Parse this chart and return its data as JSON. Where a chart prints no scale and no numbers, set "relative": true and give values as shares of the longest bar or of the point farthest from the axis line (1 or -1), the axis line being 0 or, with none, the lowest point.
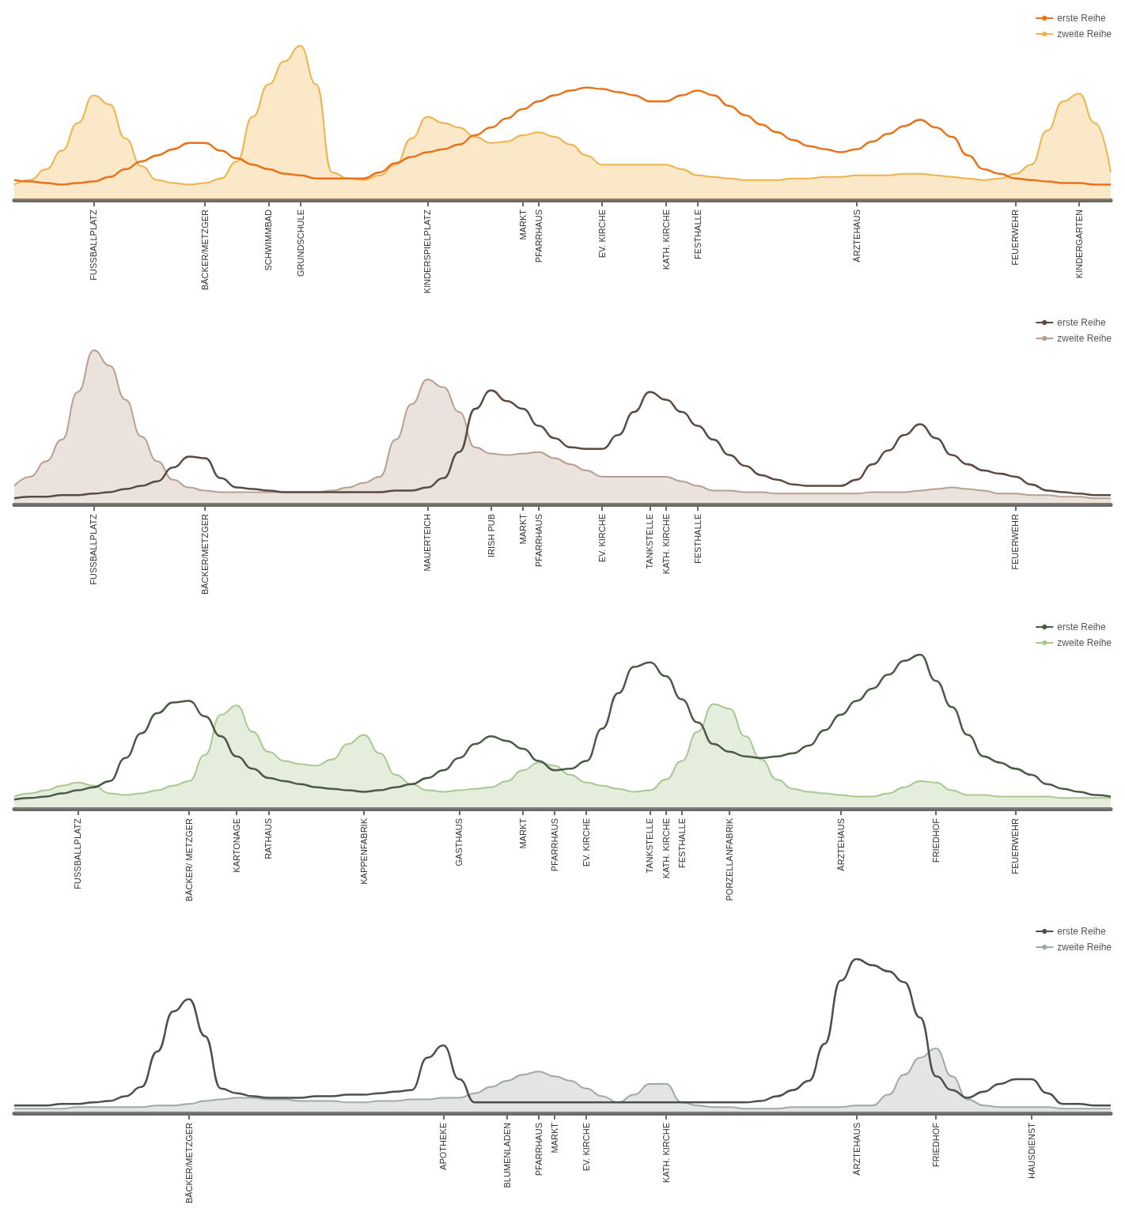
{
  "chart_data": [
    {
      "type": "line",
      "relative": true,
      "legend": "top right",
      "categories": [
        null,
        null,
        null,
        null,
        null,
        "FUSSBALLPLATZ",
        null,
        null,
        null,
        null,
        null,
        null,
        "BÄCKER/METZGER",
        null,
        null,
        null,
        "SCHWIMMBAD",
        null,
        "GRUNDSCHULE",
        null,
        null,
        null,
        null,
        null,
        null,
        null,
        "KINDERSPIELPLATZ",
        null,
        null,
        null,
        null,
        null,
        "MARKT",
        "PFARRHAUS",
        null,
        null,
        null,
        "EV. KIRCHE",
        null,
        null,
        null,
        "KATH. KIRCHE",
        null,
        "FESTHALLE",
        null,
        null,
        null,
        null,
        null,
        null,
        null,
        null,
        null,
        "ÄRZTEHAUS",
        null,
        null,
        null,
        null,
        null,
        null,
        null,
        null,
        null,
        "FEUERWEHR",
        null,
        null,
        null,
        "KINDERGARTEN",
        null,
        null
      ],
      "series": [
        {
          "name": "erste Reihe",
          "type": "line",
          "color": "#e8731a",
          "values": [
            0.13,
            0.12,
            0.11,
            0.1,
            0.11,
            0.12,
            0.15,
            0.2,
            0.25,
            0.29,
            0.33,
            0.37,
            0.37,
            0.32,
            0.27,
            0.23,
            0.2,
            0.17,
            0.16,
            0.14,
            0.14,
            0.14,
            0.14,
            0.18,
            0.24,
            0.28,
            0.31,
            0.33,
            0.36,
            0.42,
            0.47,
            0.53,
            0.59,
            0.64,
            0.68,
            0.71,
            0.73,
            0.72,
            0.7,
            0.68,
            0.64,
            0.64,
            0.68,
            0.71,
            0.68,
            0.61,
            0.55,
            0.49,
            0.44,
            0.39,
            0.35,
            0.33,
            0.31,
            0.33,
            0.38,
            0.43,
            0.48,
            0.52,
            0.47,
            0.41,
            0.29,
            0.2,
            0.17,
            0.14,
            0.13,
            0.12,
            0.11,
            0.11,
            0.1,
            0.1
          ]
        },
        {
          "name": "zweite Reihe",
          "type": "area",
          "color": "#f0b24a",
          "values": [
            0.1,
            0.13,
            0.2,
            0.32,
            0.5,
            0.68,
            0.62,
            0.4,
            0.22,
            0.13,
            0.11,
            0.1,
            0.11,
            0.14,
            0.25,
            0.54,
            0.75,
            0.9,
            1.0,
            0.75,
            0.18,
            0.14,
            0.13,
            0.16,
            0.23,
            0.4,
            0.54,
            0.5,
            0.47,
            0.41,
            0.37,
            0.38,
            0.42,
            0.44,
            0.41,
            0.36,
            0.29,
            0.23,
            0.23,
            0.23,
            0.23,
            0.23,
            0.2,
            0.16,
            0.15,
            0.14,
            0.13,
            0.13,
            0.13,
            0.14,
            0.14,
            0.15,
            0.15,
            0.16,
            0.16,
            0.16,
            0.17,
            0.17,
            0.16,
            0.15,
            0.14,
            0.13,
            0.14,
            0.17,
            0.23,
            0.45,
            0.64,
            0.69,
            0.5,
            0.18
          ]
        }
      ]
    },
    {
      "type": "line",
      "relative": true,
      "legend": "top right",
      "categories": [
        null,
        null,
        null,
        null,
        null,
        "FUSSBALLPLATZ",
        null,
        null,
        null,
        null,
        null,
        null,
        "BÄCKER/METZGER",
        null,
        null,
        null,
        null,
        null,
        null,
        null,
        null,
        null,
        null,
        null,
        null,
        null,
        "MAUERTEICH",
        null,
        null,
        null,
        "IRISH PUB",
        null,
        "MARKT",
        "PFARRHAUS",
        null,
        null,
        null,
        "EV. KIRCHE",
        null,
        null,
        "TANKSTELLE",
        "KATH. KIRCHE",
        null,
        "FESTHALLE",
        null,
        null,
        null,
        null,
        null,
        null,
        null,
        null,
        null,
        null,
        null,
        null,
        null,
        null,
        null,
        null,
        null,
        null,
        null,
        "FEUERWEHR",
        null,
        null,
        null,
        null,
        null,
        null
      ],
      "series": [
        {
          "name": "erste Reihe",
          "type": "line",
          "color": "#5a4a42",
          "values": [
            0.04,
            0.05,
            0.05,
            0.06,
            0.06,
            0.07,
            0.08,
            0.1,
            0.12,
            0.15,
            0.24,
            0.31,
            0.3,
            0.17,
            0.11,
            0.1,
            0.09,
            0.08,
            0.08,
            0.08,
            0.08,
            0.08,
            0.08,
            0.08,
            0.09,
            0.09,
            0.11,
            0.17,
            0.34,
            0.62,
            0.74,
            0.67,
            0.62,
            0.51,
            0.43,
            0.37,
            0.36,
            0.36,
            0.45,
            0.6,
            0.73,
            0.68,
            0.6,
            0.51,
            0.42,
            0.32,
            0.25,
            0.19,
            0.16,
            0.13,
            0.12,
            0.12,
            0.12,
            0.16,
            0.26,
            0.35,
            0.45,
            0.52,
            0.43,
            0.32,
            0.26,
            0.22,
            0.2,
            0.18,
            0.13,
            0.09,
            0.08,
            0.07,
            0.06,
            0.06
          ]
        },
        {
          "name": "zweite Reihe",
          "type": "area",
          "color": "#b8a090",
          "values": [
            0.12,
            0.18,
            0.28,
            0.42,
            0.73,
            1.0,
            0.9,
            0.68,
            0.44,
            0.28,
            0.16,
            0.11,
            0.09,
            0.08,
            0.08,
            0.08,
            0.08,
            0.08,
            0.08,
            0.08,
            0.09,
            0.11,
            0.14,
            0.18,
            0.42,
            0.65,
            0.81,
            0.76,
            0.6,
            0.37,
            0.33,
            0.32,
            0.33,
            0.34,
            0.3,
            0.26,
            0.22,
            0.18,
            0.18,
            0.18,
            0.18,
            0.18,
            0.15,
            0.12,
            0.09,
            0.09,
            0.08,
            0.08,
            0.07,
            0.07,
            0.07,
            0.07,
            0.07,
            0.07,
            0.08,
            0.08,
            0.08,
            0.09,
            0.1,
            0.11,
            0.1,
            0.09,
            0.07,
            0.07,
            0.06,
            0.06,
            0.05,
            0.05,
            0.04,
            0.04
          ]
        }
      ]
    },
    {
      "type": "line",
      "relative": true,
      "legend": "top right",
      "categories": [
        null,
        null,
        null,
        null,
        "FUSSBALLPLATZ",
        null,
        null,
        null,
        null,
        null,
        null,
        "BÄCKER/ METZGER",
        null,
        null,
        "KARTONAGE",
        null,
        "RATHAUS",
        null,
        null,
        null,
        null,
        null,
        "KAPPENFABRIK",
        null,
        null,
        null,
        null,
        null,
        "GASTHAUS",
        null,
        null,
        null,
        "MARKT",
        null,
        "PFARRHAUS",
        null,
        "EV. KIRCHE",
        null,
        null,
        null,
        "TANKSTELLE",
        "KATH. KIRCHE",
        "FESTHALLE",
        null,
        null,
        "PORZELLANFABRIK",
        null,
        null,
        null,
        null,
        null,
        null,
        "ÄRZTEHAUS",
        null,
        null,
        null,
        null,
        null,
        "FRIEDHOF",
        null,
        null,
        null,
        null,
        "FEUERWEHR",
        null,
        null,
        null,
        null,
        null,
        null
      ],
      "series": [
        {
          "name": "erste Reihe",
          "type": "line",
          "color": "#4a5a45",
          "values": [
            0.06,
            0.07,
            0.08,
            0.1,
            0.12,
            0.14,
            0.18,
            0.33,
            0.49,
            0.62,
            0.69,
            0.7,
            0.6,
            0.47,
            0.34,
            0.26,
            0.2,
            0.18,
            0.16,
            0.14,
            0.13,
            0.12,
            0.11,
            0.12,
            0.14,
            0.16,
            0.2,
            0.25,
            0.33,
            0.42,
            0.47,
            0.44,
            0.39,
            0.31,
            0.25,
            0.26,
            0.31,
            0.52,
            0.75,
            0.92,
            0.95,
            0.86,
            0.71,
            0.56,
            0.42,
            0.37,
            0.34,
            0.33,
            0.34,
            0.36,
            0.41,
            0.51,
            0.61,
            0.7,
            0.78,
            0.87,
            0.96,
            1.0,
            0.83,
            0.66,
            0.48,
            0.34,
            0.3,
            0.26,
            0.22,
            0.16,
            0.13,
            0.11,
            0.09,
            0.08
          ]
        },
        {
          "name": "zweite Reihe",
          "type": "area",
          "color": "#a8c890",
          "values": [
            0.08,
            0.1,
            0.12,
            0.15,
            0.17,
            0.15,
            0.1,
            0.09,
            0.1,
            0.12,
            0.15,
            0.18,
            0.35,
            0.61,
            0.67,
            0.5,
            0.37,
            0.31,
            0.29,
            0.28,
            0.32,
            0.42,
            0.48,
            0.36,
            0.22,
            0.16,
            0.12,
            0.11,
            0.12,
            0.13,
            0.14,
            0.18,
            0.25,
            0.3,
            0.28,
            0.22,
            0.17,
            0.15,
            0.13,
            0.11,
            0.12,
            0.19,
            0.31,
            0.5,
            0.68,
            0.65,
            0.47,
            0.32,
            0.19,
            0.13,
            0.11,
            0.1,
            0.09,
            0.08,
            0.08,
            0.1,
            0.14,
            0.18,
            0.17,
            0.12,
            0.09,
            0.09,
            0.08,
            0.08,
            0.08,
            0.08,
            0.07,
            0.07,
            0.07,
            0.07
          ]
        }
      ]
    },
    {
      "type": "line",
      "relative": true,
      "legend": "top right",
      "categories": [
        null,
        null,
        null,
        null,
        null,
        null,
        null,
        null,
        null,
        null,
        null,
        "BÄCKER/METZGER",
        null,
        null,
        null,
        null,
        null,
        null,
        null,
        null,
        null,
        null,
        null,
        null,
        null,
        null,
        null,
        "APOTHEKE",
        null,
        null,
        null,
        "BLUMENLADEN",
        null,
        "PFARRHAUS",
        "MARKT",
        null,
        "EV. KIRCHE",
        null,
        null,
        null,
        null,
        "KATH. KIRCHE",
        null,
        null,
        null,
        null,
        null,
        null,
        null,
        null,
        null,
        null,
        null,
        "ÄRZTEHAUS",
        null,
        null,
        null,
        null,
        "FRIEDHOF",
        null,
        null,
        null,
        null,
        null,
        "HAUSDIENST",
        null,
        null,
        null,
        null,
        null
      ],
      "series": [
        {
          "name": "erste Reihe",
          "type": "line",
          "color": "#4a504c",
          "values": [
            0.05,
            0.05,
            0.05,
            0.06,
            0.06,
            0.07,
            0.08,
            0.11,
            0.17,
            0.4,
            0.66,
            0.74,
            0.5,
            0.16,
            0.13,
            0.11,
            0.1,
            0.1,
            0.1,
            0.11,
            0.11,
            0.12,
            0.12,
            0.13,
            0.14,
            0.15,
            0.36,
            0.44,
            0.22,
            0.07,
            0.07,
            0.07,
            0.07,
            0.07,
            0.07,
            0.07,
            0.07,
            0.07,
            0.07,
            0.07,
            0.07,
            0.07,
            0.07,
            0.07,
            0.07,
            0.07,
            0.07,
            0.08,
            0.11,
            0.15,
            0.21,
            0.45,
            0.86,
            1.0,
            0.96,
            0.92,
            0.85,
            0.62,
            0.24,
            0.15,
            0.1,
            0.14,
            0.19,
            0.22,
            0.22,
            0.13,
            0.06,
            0.06,
            0.05,
            0.05
          ]
        },
        {
          "name": "zweite Reihe",
          "type": "area",
          "color": "#a0aaa5",
          "values": [
            0.03,
            0.03,
            0.03,
            0.03,
            0.04,
            0.04,
            0.04,
            0.04,
            0.04,
            0.05,
            0.05,
            0.06,
            0.08,
            0.09,
            0.1,
            0.1,
            0.09,
            0.09,
            0.08,
            0.08,
            0.08,
            0.07,
            0.07,
            0.08,
            0.08,
            0.09,
            0.09,
            0.1,
            0.1,
            0.13,
            0.17,
            0.21,
            0.25,
            0.27,
            0.24,
            0.21,
            0.16,
            0.11,
            0.07,
            0.12,
            0.19,
            0.19,
            0.07,
            0.05,
            0.04,
            0.04,
            0.03,
            0.03,
            0.03,
            0.04,
            0.04,
            0.04,
            0.04,
            0.05,
            0.05,
            0.12,
            0.25,
            0.36,
            0.42,
            0.24,
            0.09,
            0.05,
            0.04,
            0.04,
            0.04,
            0.04,
            0.03,
            0.03,
            0.03,
            0.03
          ]
        }
      ]
    }
  ]
}
